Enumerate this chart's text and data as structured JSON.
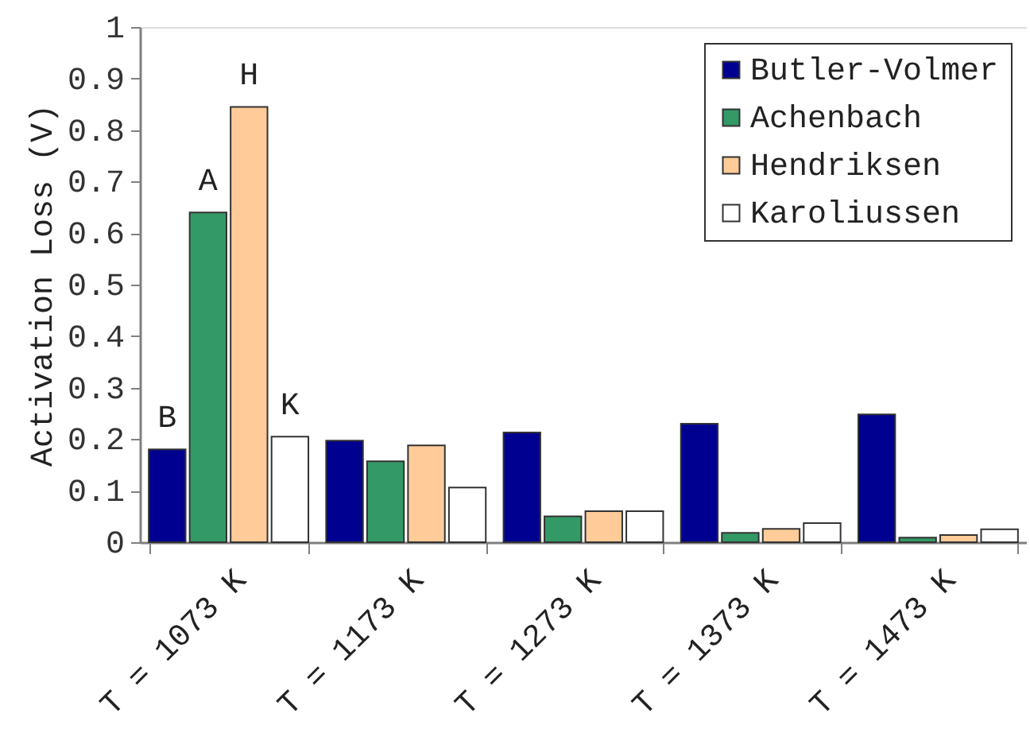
{
  "chart_data": {
    "type": "bar",
    "ylabel": "Activation Loss (V)",
    "categories": [
      "T = 1073 K",
      "T = 1173 K",
      "T = 1273 K",
      "T = 1373 K",
      "T = 1473 K"
    ],
    "series": [
      {
        "name": "Butler-Volmer",
        "color": "#000090",
        "values": [
          0.18,
          0.197,
          0.213,
          0.23,
          0.248
        ]
      },
      {
        "name": "Achenbach",
        "color": "#339966",
        "values": [
          0.64,
          0.157,
          0.05,
          0.018,
          0.009
        ]
      },
      {
        "name": "Hendriksen",
        "color": "#ffcc99",
        "values": [
          0.845,
          0.188,
          0.06,
          0.026,
          0.014
        ]
      },
      {
        "name": "Karoliussen",
        "color": "#ffffff",
        "values": [
          0.205,
          0.106,
          0.06,
          0.037,
          0.025
        ]
      }
    ],
    "ylim": [
      0,
      1
    ],
    "yticks": [
      0,
      0.1,
      0.2,
      0.3,
      0.4,
      0.5,
      0.6,
      0.7,
      0.8,
      0.9,
      1
    ],
    "annotations": [
      "B",
      "A",
      "H",
      "K"
    ],
    "legend": "top right",
    "grid": false
  }
}
